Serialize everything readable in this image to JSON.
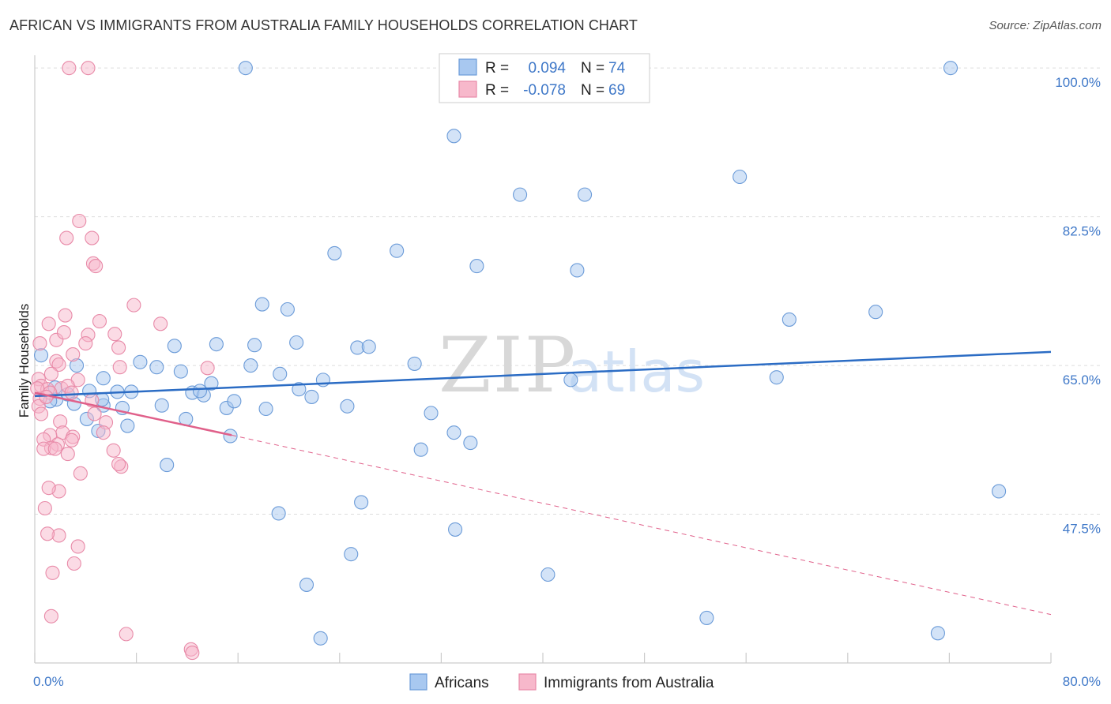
{
  "chart_data": {
    "type": "scatter",
    "title": "AFRICAN VS IMMIGRANTS FROM AUSTRALIA FAMILY HOUSEHOLDS CORRELATION CHART",
    "source": "Source: ZipAtlas.com",
    "ylabel": "Family Households",
    "xlim": [
      0,
      80
    ],
    "ylim": [
      30,
      101.5
    ],
    "x_tick_labels": [
      "0.0%",
      "80.0%"
    ],
    "y_ticks": [
      {
        "value": 100.0,
        "label": "100.0%"
      },
      {
        "value": 82.5,
        "label": "82.5%"
      },
      {
        "value": 65.0,
        "label": "65.0%"
      },
      {
        "value": 47.5,
        "label": "47.5%"
      }
    ],
    "watermark": {
      "zip": "ZIP",
      "atlas": "atlas"
    },
    "legend": {
      "r_label": "R =",
      "n_label": "N =",
      "entries": [
        {
          "r": "0.094",
          "n": "74"
        },
        {
          "r": "-0.078",
          "n": "69"
        }
      ]
    },
    "colors": {
      "africans_fill": "#a8c8f0",
      "africans_stroke": "#6b9bd8",
      "africans_line": "#2b6cc4",
      "australia_fill": "#f7b8cb",
      "australia_stroke": "#e88aa8",
      "australia_line": "#e0608a",
      "grid": "#dddddd",
      "tick_text": "#3f78c8"
    },
    "series": [
      {
        "name": "Africans",
        "trend": {
          "x0": 0,
          "y0": 61.4,
          "x1": 80,
          "y1": 66.6
        },
        "points": [
          [
            16.6,
            100.0
          ],
          [
            72.1,
            100.0
          ],
          [
            33.0,
            92.0
          ],
          [
            55.5,
            87.2
          ],
          [
            38.2,
            85.1
          ],
          [
            43.3,
            85.1
          ],
          [
            23.6,
            78.2
          ],
          [
            28.5,
            78.5
          ],
          [
            34.8,
            76.7
          ],
          [
            42.7,
            76.2
          ],
          [
            17.9,
            72.2
          ],
          [
            19.9,
            71.6
          ],
          [
            59.4,
            70.4
          ],
          [
            66.2,
            71.3
          ],
          [
            11.0,
            67.3
          ],
          [
            14.3,
            67.5
          ],
          [
            17.3,
            67.4
          ],
          [
            20.6,
            67.7
          ],
          [
            25.4,
            67.1
          ],
          [
            26.3,
            67.2
          ],
          [
            8.3,
            65.4
          ],
          [
            9.6,
            64.8
          ],
          [
            11.5,
            64.3
          ],
          [
            17.0,
            65.0
          ],
          [
            19.3,
            64.0
          ],
          [
            29.9,
            65.2
          ],
          [
            3.3,
            65.0
          ],
          [
            5.4,
            63.5
          ],
          [
            13.9,
            62.9
          ],
          [
            22.7,
            63.3
          ],
          [
            42.2,
            63.3
          ],
          [
            58.4,
            63.6
          ],
          [
            1.7,
            61.0
          ],
          [
            1.6,
            62.4
          ],
          [
            2.6,
            61.6
          ],
          [
            3.1,
            60.5
          ],
          [
            4.3,
            62.0
          ],
          [
            5.4,
            60.3
          ],
          [
            5.3,
            61.0
          ],
          [
            6.5,
            61.9
          ],
          [
            6.9,
            60.0
          ],
          [
            7.6,
            61.9
          ],
          [
            10.0,
            60.3
          ],
          [
            12.4,
            61.8
          ],
          [
            13.3,
            61.5
          ],
          [
            13.0,
            62.0
          ],
          [
            15.1,
            60.0
          ],
          [
            15.7,
            60.8
          ],
          [
            18.2,
            59.9
          ],
          [
            20.8,
            62.2
          ],
          [
            21.8,
            61.3
          ],
          [
            24.6,
            60.2
          ],
          [
            31.2,
            59.4
          ],
          [
            4.1,
            58.7
          ],
          [
            7.3,
            57.9
          ],
          [
            5.0,
            57.3
          ],
          [
            11.9,
            58.7
          ],
          [
            15.4,
            56.7
          ],
          [
            33.0,
            57.1
          ],
          [
            34.3,
            55.9
          ],
          [
            30.4,
            55.1
          ],
          [
            10.4,
            53.3
          ],
          [
            75.9,
            50.2
          ],
          [
            25.7,
            48.9
          ],
          [
            19.2,
            47.6
          ],
          [
            33.1,
            45.7
          ],
          [
            24.9,
            42.8
          ],
          [
            21.4,
            39.2
          ],
          [
            40.4,
            40.4
          ],
          [
            52.9,
            35.3
          ],
          [
            71.1,
            33.5
          ],
          [
            22.5,
            32.9
          ],
          [
            0.5,
            66.2
          ],
          [
            1.2,
            60.8
          ]
        ]
      },
      {
        "name": "Immigrants from Australia",
        "trend": {
          "x0": 0,
          "y0": 61.8,
          "x1": 15.5,
          "y1": 56.8
        },
        "trend_extended": {
          "x0": 15.5,
          "y0": 56.8,
          "x1": 80,
          "y1": 35.7
        },
        "points": [
          [
            2.7,
            100.0
          ],
          [
            4.2,
            100.0
          ],
          [
            3.5,
            82.0
          ],
          [
            2.5,
            80.0
          ],
          [
            4.5,
            80.0
          ],
          [
            4.6,
            77.0
          ],
          [
            4.8,
            76.7
          ],
          [
            7.8,
            72.1
          ],
          [
            9.9,
            69.9
          ],
          [
            0.4,
            67.6
          ],
          [
            1.1,
            69.9
          ],
          [
            2.4,
            70.9
          ],
          [
            5.1,
            70.2
          ],
          [
            1.7,
            68.0
          ],
          [
            2.3,
            68.9
          ],
          [
            4.2,
            68.6
          ],
          [
            6.3,
            68.7
          ],
          [
            4.0,
            67.6
          ],
          [
            6.6,
            67.1
          ],
          [
            3.0,
            66.3
          ],
          [
            1.7,
            65.5
          ],
          [
            1.9,
            65.1
          ],
          [
            6.7,
            64.8
          ],
          [
            1.3,
            64.0
          ],
          [
            0.3,
            63.4
          ],
          [
            3.4,
            63.3
          ],
          [
            13.6,
            64.7
          ],
          [
            0.5,
            62.6
          ],
          [
            1.0,
            62.2
          ],
          [
            2.1,
            62.3
          ],
          [
            2.6,
            62.6
          ],
          [
            1.2,
            61.8
          ],
          [
            0.4,
            61.1
          ],
          [
            0.3,
            60.2
          ],
          [
            2.9,
            61.8
          ],
          [
            4.5,
            60.9
          ],
          [
            0.5,
            59.3
          ],
          [
            4.7,
            59.3
          ],
          [
            2.0,
            58.4
          ],
          [
            5.6,
            58.3
          ],
          [
            2.2,
            57.1
          ],
          [
            1.2,
            56.8
          ],
          [
            3.0,
            56.6
          ],
          [
            0.7,
            56.3
          ],
          [
            2.9,
            56.2
          ],
          [
            5.4,
            57.1
          ],
          [
            1.8,
            55.7
          ],
          [
            1.3,
            55.3
          ],
          [
            0.7,
            55.2
          ],
          [
            1.6,
            55.2
          ],
          [
            2.6,
            54.6
          ],
          [
            6.2,
            55.0
          ],
          [
            6.8,
            53.1
          ],
          [
            6.6,
            53.4
          ],
          [
            3.6,
            52.3
          ],
          [
            1.9,
            50.2
          ],
          [
            1.1,
            50.6
          ],
          [
            0.8,
            48.2
          ],
          [
            1.9,
            45.0
          ],
          [
            1.0,
            45.2
          ],
          [
            3.4,
            43.7
          ],
          [
            3.1,
            41.7
          ],
          [
            1.4,
            40.6
          ],
          [
            1.3,
            35.5
          ],
          [
            7.2,
            33.4
          ],
          [
            12.3,
            31.6
          ],
          [
            12.4,
            31.2
          ],
          [
            0.2,
            62.3
          ],
          [
            0.9,
            61.3
          ]
        ]
      }
    ],
    "bottom_legend": [
      "Africans",
      "Immigrants from Australia"
    ]
  }
}
